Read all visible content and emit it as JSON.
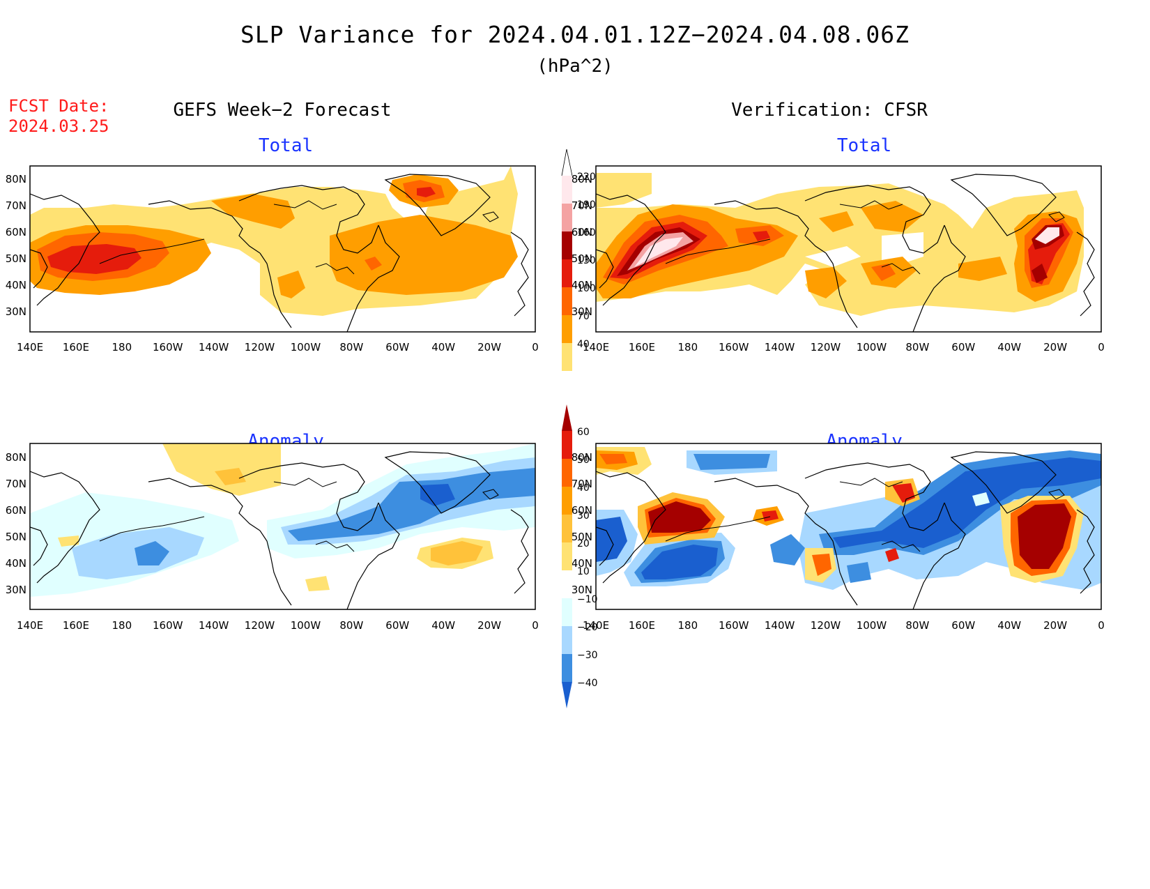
{
  "figure": {
    "title": "SLP Variance for 2024.04.01.12Z−2024.04.08.06Z",
    "units": "(hPa^2)",
    "fcst_date_label": "FCST Date:",
    "fcst_date_value": "2024.03.25",
    "left_column_title": "GEFS Week−2 Forecast",
    "right_column_title": "Verification: CFSR"
  },
  "panels": {
    "fcst_total": {
      "title": "Total"
    },
    "verif_total": {
      "title": "Total"
    },
    "fcst_anom": {
      "title": "Anomaly"
    },
    "verif_anom": {
      "title": "Anomaly"
    }
  },
  "axes": {
    "lat_labels": [
      "80N",
      "70N",
      "60N",
      "50N",
      "40N",
      "30N"
    ],
    "lon_labels": [
      "140E",
      "160E",
      "180",
      "160W",
      "140W",
      "120W",
      "100W",
      "80W",
      "60W",
      "40W",
      "20W",
      "0"
    ]
  },
  "colorbars": {
    "total": {
      "levels": [
        "220",
        "190",
        "160",
        "130",
        "100",
        "70",
        "40"
      ],
      "colors": [
        "#ffe8ec",
        "#f4a3a3",
        "#a50000",
        "#e51c0c",
        "#ff6600",
        "#ff9e00",
        "#ffe273"
      ]
    },
    "anomaly": {
      "levels": [
        "60",
        "50",
        "40",
        "30",
        "20",
        "10",
        "−10",
        "−20",
        "−30",
        "−40"
      ],
      "colors": [
        "#a50000",
        "#e51c0c",
        "#ff6600",
        "#ff9e00",
        "#ffc23a",
        "#ffe273",
        "#ffffff",
        "#e0ffff",
        "#a8d8ff",
        "#3d8ee0",
        "#1a5fcf"
      ]
    }
  },
  "palette": {
    "total_40_70": "#ffe273",
    "total_70_100": "#ff9e00",
    "total_100_130": "#ff6600",
    "total_130_160": "#e51c0c",
    "total_160_190": "#a50000",
    "total_190_220": "#f4a3a3",
    "total_220_plus": "#ffe8ec",
    "anom_neg_10_20": "#e0ffff",
    "anom_neg_20_30": "#a8d8ff",
    "anom_neg_30_40": "#3d8ee0",
    "anom_neg_40_plus": "#1a5fcf",
    "anom_pos_10_20": "#ffe273",
    "anom_pos_20_30": "#ffc23a",
    "anom_pos_30_40": "#ff9e00",
    "anom_pos_40_50": "#ff6600",
    "anom_pos_50_60": "#e51c0c",
    "anom_pos_60_plus": "#a50000"
  }
}
